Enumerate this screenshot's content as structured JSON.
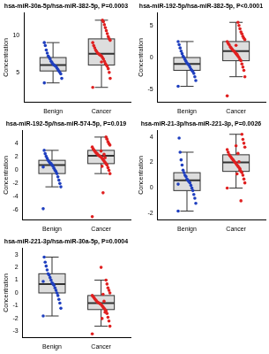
{
  "chart_data": [
    {
      "type": "boxplot",
      "title": "hsa-miR-30a-5p/hsa-miR-382-5p, P=0.0003",
      "y_label": "Concentration",
      "categories": [
        "Benign",
        "Cancer"
      ],
      "colors": [
        "#1f3fbf",
        "#e02020"
      ],
      "values": [
        [
          3.6,
          4.2,
          4.8,
          5.0,
          5.2,
          5.4,
          5.6,
          5.8,
          5.9,
          6.0,
          6.1,
          6.3,
          6.5,
          6.8,
          7.0,
          7.2,
          7.6,
          8.0,
          8.6,
          9.0
        ],
        [
          3.0,
          4.2,
          5.0,
          5.5,
          5.8,
          6.0,
          6.2,
          6.5,
          6.8,
          7.0,
          7.2,
          7.3,
          7.4,
          7.5,
          7.6,
          7.8,
          8.0,
          8.3,
          8.6,
          9.0,
          9.3,
          9.5,
          9.8,
          10.2,
          10.6,
          11.0,
          11.4,
          11.8,
          12.0,
          6.4
        ]
      ],
      "boxes": [
        {
          "whisker_low": 3.6,
          "q1": 5.2,
          "median": 6.0,
          "q3": 7.0,
          "whisker_high": 9.0
        },
        {
          "whisker_low": 3.0,
          "q1": 6.0,
          "median": 7.5,
          "q3": 9.5,
          "whisker_high": 12.0
        }
      ],
      "ylim": [
        1,
        13
      ],
      "yticks": [
        5,
        10
      ],
      "grid": false
    },
    {
      "type": "boxplot",
      "title": "hsa-miR-192-5p/hsa-miR-382-5p, P<0.0001",
      "y_label": "Concentration",
      "categories": [
        "Benign",
        "Cancer"
      ],
      "colors": [
        "#1f3fbf",
        "#e02020"
      ],
      "values": [
        [
          -4.5,
          -3.6,
          -3,
          -2.5,
          -2.2,
          -2,
          -1.8,
          -1.5,
          -1.2,
          -1,
          -0.9,
          -0.6,
          -0.3,
          0,
          0.2,
          0.6,
          1,
          1.5,
          2,
          2.5
        ],
        [
          -6,
          -3,
          -2,
          -1.5,
          -1,
          -0.5,
          -0.3,
          0,
          0.2,
          0.4,
          0.6,
          0.8,
          1,
          1.1,
          1.3,
          1.5,
          1.7,
          2,
          2.2,
          2.5,
          2.8,
          3,
          3.3,
          3.7,
          4,
          4.5,
          5,
          5.5,
          0.5,
          1.9
        ]
      ],
      "boxes": [
        {
          "whisker_low": -4.5,
          "q1": -2,
          "median": -1,
          "q3": 0,
          "whisker_high": 2.5
        },
        {
          "whisker_low": -3,
          "q1": -0.5,
          "median": 1,
          "q3": 2.5,
          "whisker_high": 5.5
        }
      ],
      "ylim": [
        -7,
        7
      ],
      "yticks": [
        -5,
        0,
        5
      ],
      "grid": false
    },
    {
      "type": "boxplot",
      "title": "hsa-miR-192-5p/hsa-miR-574-5p, P=0.019",
      "y_label": "Concentration",
      "categories": [
        "Benign",
        "Cancer"
      ],
      "colors": [
        "#1f3fbf",
        "#e02020"
      ],
      "values": [
        [
          -5.8,
          -2.5,
          -2,
          -1.5,
          -1,
          -0.5,
          -0.2,
          0,
          0.3,
          0.6,
          0.8,
          1,
          1.1,
          1.3,
          1.5,
          1.8,
          2.1,
          2.5,
          3,
          0.5
        ],
        [
          -7,
          -0.5,
          0,
          0.4,
          0.8,
          1,
          1.2,
          1.4,
          1.6,
          1.8,
          2,
          2.1,
          2.2,
          2.3,
          2.5,
          2.6,
          2.8,
          3,
          3.2,
          3.5,
          3.8,
          4,
          4.3,
          4.7,
          5,
          1.9,
          2.4,
          -3.4,
          0.6,
          2.9
        ]
      ],
      "boxes": [
        {
          "whisker_low": -2.5,
          "q1": -0.5,
          "median": 0.8,
          "q3": 1.5,
          "whisker_high": 3
        },
        {
          "whisker_low": -0.5,
          "q1": 1,
          "median": 2.2,
          "q3": 3,
          "whisker_high": 5
        }
      ],
      "ylim": [
        -7.5,
        6
      ],
      "yticks": [
        -6,
        -4,
        -2,
        0,
        2,
        4
      ],
      "grid": false
    },
    {
      "type": "boxplot",
      "title": "hsa-miR-21-3p/hsa-miR-221-3p, P=0.0026",
      "y_label": "Concentration",
      "categories": [
        "Benign",
        "Cancer"
      ],
      "colors": [
        "#1f3fbf",
        "#e02020"
      ],
      "values": [
        [
          -1.8,
          -1.2,
          -0.8,
          -0.5,
          -0.2,
          0,
          0.2,
          0.4,
          0.5,
          0.6,
          0.7,
          0.9,
          1,
          1.2,
          1.4,
          1.8,
          2.2,
          2.8,
          3.9,
          0.3
        ],
        [
          0,
          0.4,
          0.7,
          1,
          1.2,
          1.3,
          1.5,
          1.6,
          1.7,
          1.8,
          1.9,
          2,
          2.1,
          2.2,
          2.3,
          2.4,
          2.5,
          2.6,
          2.8,
          3,
          3.2,
          3.5,
          3.8,
          4.2,
          -1,
          1.4,
          2.05,
          2.7,
          1.1,
          3.3
        ]
      ],
      "boxes": [
        {
          "whisker_low": -1.8,
          "q1": -0.2,
          "median": 0.6,
          "q3": 1.2,
          "whisker_high": 2.8
        },
        {
          "whisker_low": 0,
          "q1": 1.3,
          "median": 2,
          "q3": 2.6,
          "whisker_high": 4.2
        }
      ],
      "ylim": [
        -2.5,
        4.5
      ],
      "yticks": [
        -2,
        0,
        2,
        4
      ],
      "grid": false
    },
    {
      "type": "boxplot",
      "title": "hsa-miR-221-3p/hsa-miR-30a-5p, P=0.0004",
      "y_label": "Concentration",
      "categories": [
        "Benign",
        "Cancer"
      ],
      "colors": [
        "#1f3fbf",
        "#e02020"
      ],
      "values": [
        [
          -1.8,
          -1.2,
          -0.8,
          -0.5,
          -0.2,
          0,
          0.2,
          0.4,
          0.6,
          0.7,
          0.8,
          1,
          1.2,
          1.4,
          1.5,
          1.8,
          2.1,
          2.4,
          2.8,
          0.9
        ],
        [
          -3.2,
          -2.6,
          -2.2,
          -1.9,
          -1.6,
          -1.4,
          -1.3,
          -1.2,
          -1.1,
          -1,
          -0.9,
          -0.85,
          -0.8,
          -0.75,
          -0.7,
          -0.6,
          -0.5,
          -0.4,
          -0.3,
          -0.2,
          0,
          0.2,
          0.4,
          0.7,
          1,
          -1.5,
          -0.65,
          -0.1,
          -2,
          2.0
        ]
      ],
      "boxes": [
        {
          "whisker_low": -1.8,
          "q1": 0,
          "median": 0.7,
          "q3": 1.5,
          "whisker_high": 2.8
        },
        {
          "whisker_low": -2.6,
          "q1": -1.3,
          "median": -0.8,
          "q3": -0.2,
          "whisker_high": 1
        }
      ],
      "ylim": [
        -3.5,
        3.5
      ],
      "yticks": [
        -3,
        -2,
        -1,
        0,
        1,
        2,
        3
      ],
      "grid": false
    }
  ]
}
